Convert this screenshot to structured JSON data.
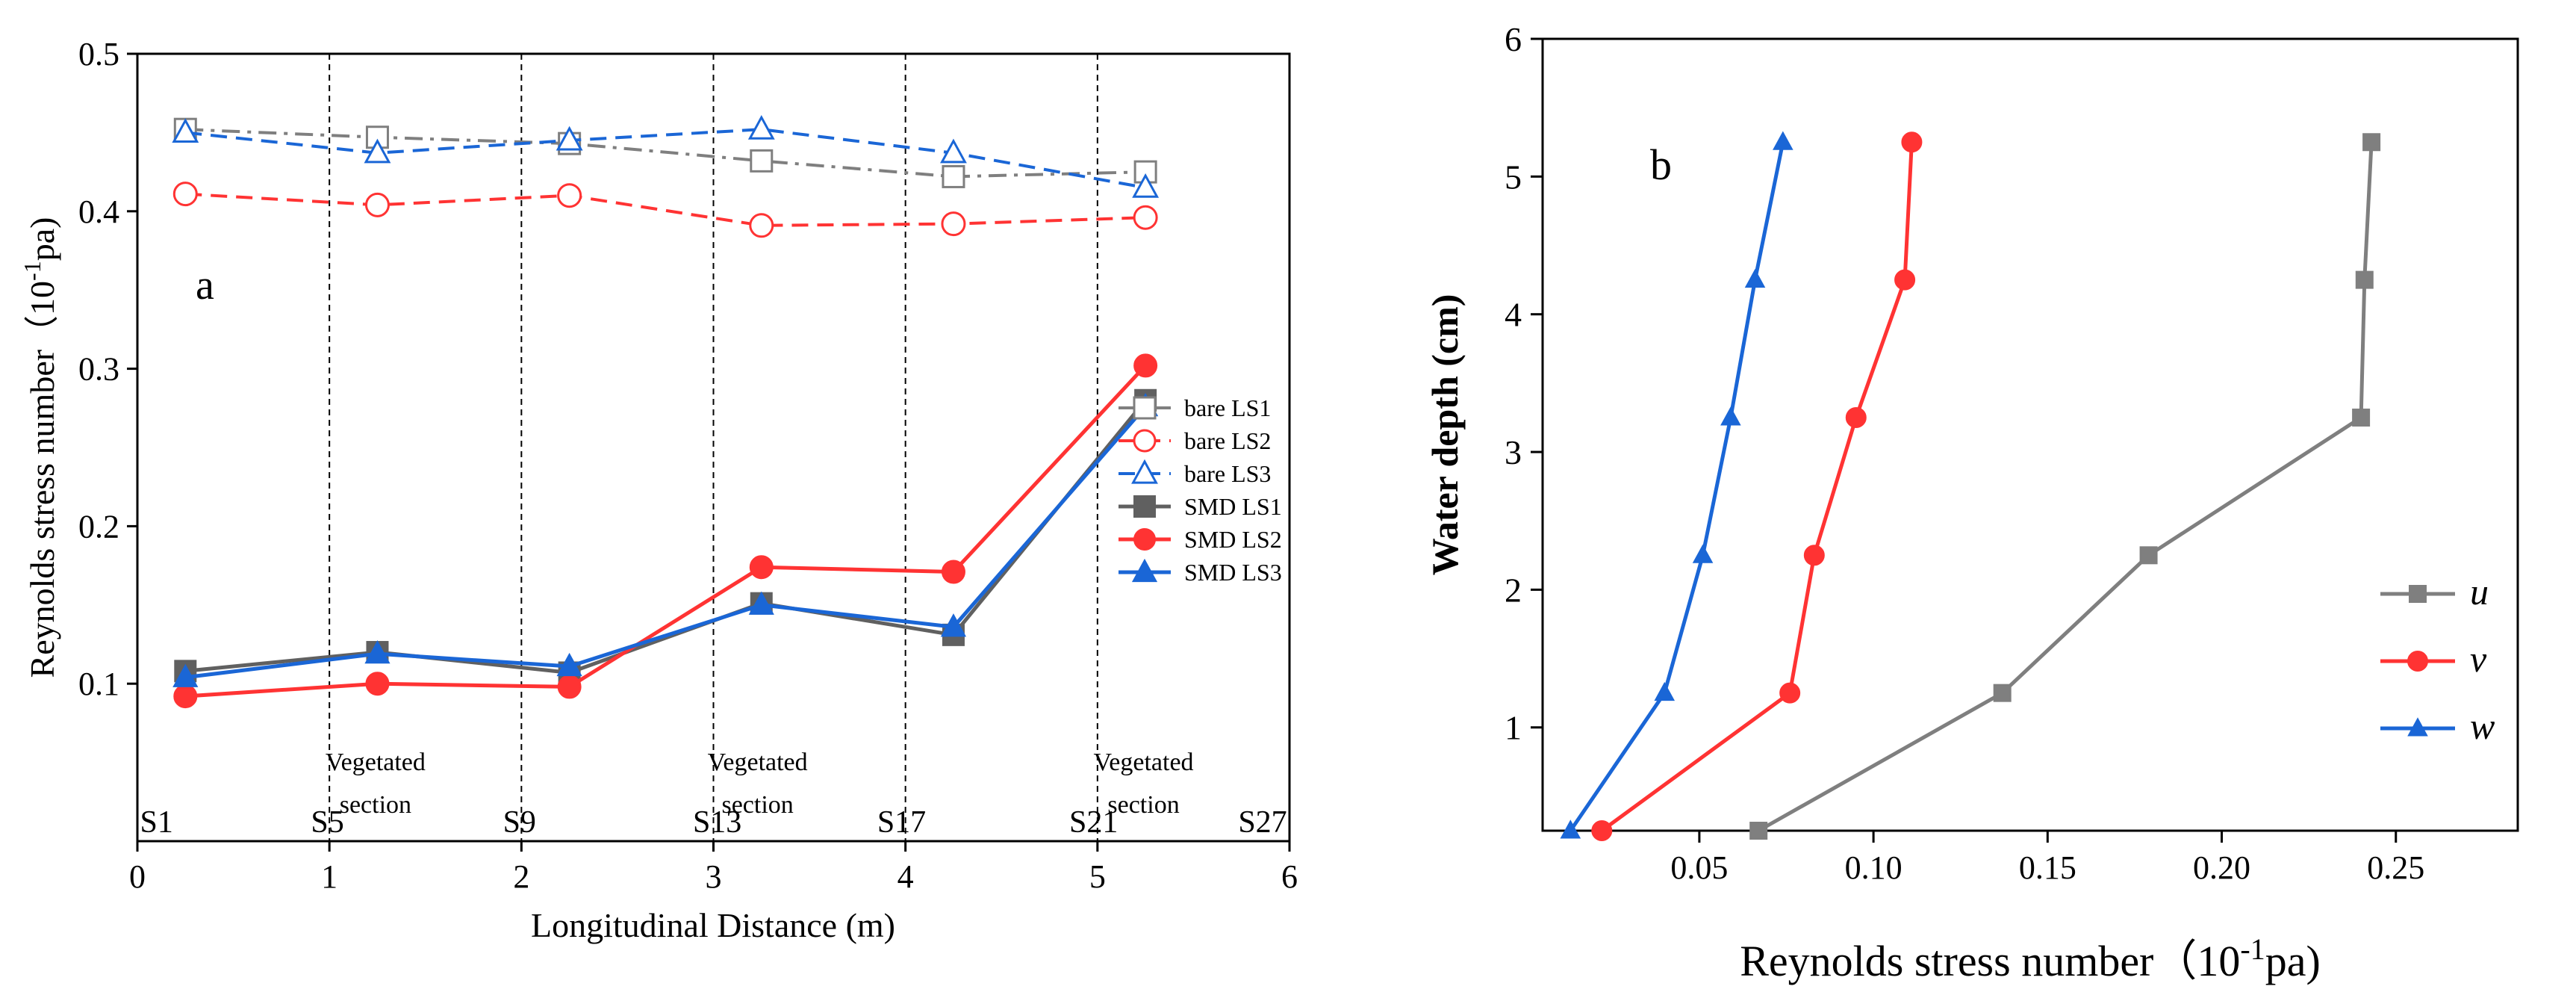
{
  "chart_data": [
    {
      "type": "line",
      "panel_label": "a",
      "xlabel": "Longitudinal Distance (m)",
      "ylabel_main": "Reynolds stress number（10",
      "ylabel_sup": "-1",
      "ylabel_tail": "pa)",
      "xlim": [
        0,
        6
      ],
      "ylim": [
        0,
        0.5
      ],
      "xticks": [
        0,
        1,
        2,
        3,
        4,
        5,
        6
      ],
      "xtick_labels": [
        "0",
        "1",
        "2",
        "3",
        "4",
        "5",
        "6"
      ],
      "yticks": [
        0.1,
        0.2,
        0.3,
        0.4,
        0.5
      ],
      "ytick_labels": [
        "0.1",
        "0.2",
        "0.3",
        "0.4",
        "0.5"
      ],
      "x": [
        0.25,
        1.25,
        2.25,
        3.25,
        4.25,
        5.25
      ],
      "series": [
        {
          "name": "bare LS1",
          "color": "#7f7f7f",
          "marker": "square-open",
          "dash": "dashdot",
          "values": [
            0.452,
            0.447,
            0.443,
            0.432,
            0.422,
            0.425
          ]
        },
        {
          "name": "bare LS2",
          "color": "#ff3333",
          "marker": "circle-open",
          "dash": "dash",
          "values": [
            0.411,
            0.404,
            0.41,
            0.391,
            0.392,
            0.396
          ]
        },
        {
          "name": "bare LS3",
          "color": "#1a66d6",
          "marker": "triangle-open",
          "dash": "dash",
          "values": [
            0.45,
            0.437,
            0.445,
            0.452,
            0.437,
            0.415
          ]
        },
        {
          "name": "SMD LS1",
          "color": "#606060",
          "marker": "square",
          "dash": "solid",
          "values": [
            0.108,
            0.12,
            0.107,
            0.151,
            0.131,
            0.28
          ]
        },
        {
          "name": "SMD LS2",
          "color": "#ff3333",
          "marker": "circle",
          "dash": "solid",
          "values": [
            0.092,
            0.1,
            0.098,
            0.174,
            0.171,
            0.302
          ]
        },
        {
          "name": "SMD LS3",
          "color": "#1a66d6",
          "marker": "triangle",
          "dash": "solid",
          "values": [
            0.104,
            0.119,
            0.111,
            0.15,
            0.136,
            0.276
          ]
        }
      ],
      "vlines": [
        1,
        2,
        3,
        4,
        5
      ],
      "section_labels": [
        {
          "text": "S1",
          "x": 0.1
        },
        {
          "text": "S5",
          "x": 0.99
        },
        {
          "text": "S9",
          "x": 1.99
        },
        {
          "text": "S13",
          "x": 3.02
        },
        {
          "text": "S17",
          "x": 3.98
        },
        {
          "text": "S21",
          "x": 4.98
        },
        {
          "text": "S27",
          "x": 5.86
        }
      ],
      "annotations": [
        {
          "line1": "Vegetated",
          "line2": "section",
          "x": 1.24
        },
        {
          "line1": "Vegetated",
          "line2": "section",
          "x": 3.23
        },
        {
          "line1": "Vegetated",
          "line2": "section",
          "x": 5.24
        }
      ],
      "legend_position": "right"
    },
    {
      "type": "line",
      "panel_label": "b",
      "xlabel_main": "Reynolds stress number（10",
      "xlabel_sup": "-1",
      "xlabel_tail": "pa)",
      "ylabel": "Water depth (cm)",
      "xlim": [
        0.005,
        0.285
      ],
      "ylim": [
        0.25,
        6
      ],
      "xticks": [
        0.05,
        0.1,
        0.15,
        0.2,
        0.25
      ],
      "xtick_labels": [
        "0.05",
        "0.10",
        "0.15",
        "0.20",
        "0.25"
      ],
      "yticks": [
        1,
        2,
        3,
        4,
        5,
        6
      ],
      "ytick_labels": [
        "1",
        "2",
        "3",
        "4",
        "5",
        "6"
      ],
      "y": [
        0.25,
        1.25,
        2.25,
        3.25,
        4.25,
        5.25
      ],
      "series": [
        {
          "name": "u",
          "color": "#7f7f7f",
          "marker": "square",
          "x": [
            0.067,
            0.137,
            0.179,
            0.24,
            0.241,
            0.243
          ]
        },
        {
          "name": "v",
          "color": "#ff3333",
          "marker": "circle",
          "x": [
            0.022,
            0.076,
            0.083,
            0.095,
            0.109,
            0.111
          ]
        },
        {
          "name": "w",
          "color": "#1a66d6",
          "marker": "triangle",
          "x": [
            0.013,
            0.04,
            0.051,
            0.059,
            0.066,
            0.074
          ]
        }
      ],
      "legend_position": "bottom-right"
    }
  ]
}
